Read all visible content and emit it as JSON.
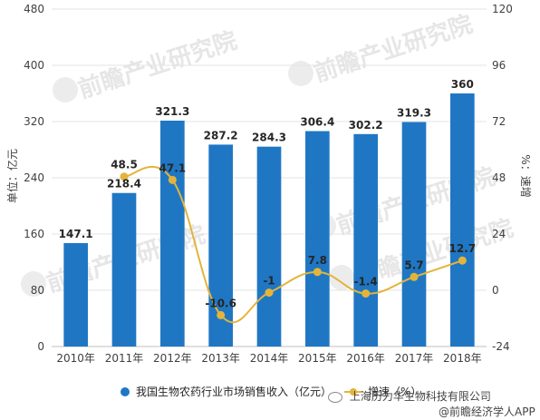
{
  "chart_data": {
    "type": "bar+line",
    "categories": [
      "2010年",
      "2011年",
      "2012年",
      "2013年",
      "2014年",
      "2015年",
      "2016年",
      "2017年",
      "2018年"
    ],
    "series": [
      {
        "name": "我国生物农药行业市场销售收入（亿元）",
        "type": "bar",
        "axis": "left",
        "color": "#1f77c4",
        "values": [
          147.1,
          218.4,
          321.3,
          287.2,
          284.3,
          306.4,
          302.2,
          319.3,
          360
        ],
        "labels": [
          "147.1",
          "218.4",
          "321.3",
          "287.2",
          "284.3",
          "306.4",
          "302.2",
          "319.3",
          "360"
        ]
      },
      {
        "name": "增速（%）",
        "type": "line",
        "axis": "right",
        "color": "#e4b43a",
        "values": [
          null,
          48.5,
          47.1,
          -10.6,
          -1,
          7.8,
          -1.4,
          5.7,
          12.7
        ],
        "labels": [
          "",
          "48.5",
          "47.1",
          "-10.6",
          "-1",
          "7.8",
          "-1.4",
          "5.7",
          "12.7"
        ]
      }
    ],
    "ylabel": "单位：亿元",
    "y2label": "%：速增",
    "ylim": [
      0,
      480
    ],
    "yticks": [
      0,
      80,
      160,
      240,
      320,
      400,
      480
    ],
    "y2lim": [
      -24,
      120
    ],
    "y2ticks": [
      -24,
      0,
      24,
      48,
      72,
      96,
      120
    ],
    "grid": "horizontal",
    "legend_position": "bottom"
  },
  "watermark": {
    "text": "前瞻产业研究院",
    "subtext": "QIANZHAN INDUSTRY RESEARCH INSTITUTE"
  },
  "footer": {
    "wechat_text": "上海历力华生物科技有限公司",
    "app_text": "@前瞻经济学人APP",
    "wechat_icon": "wechat-icon"
  }
}
